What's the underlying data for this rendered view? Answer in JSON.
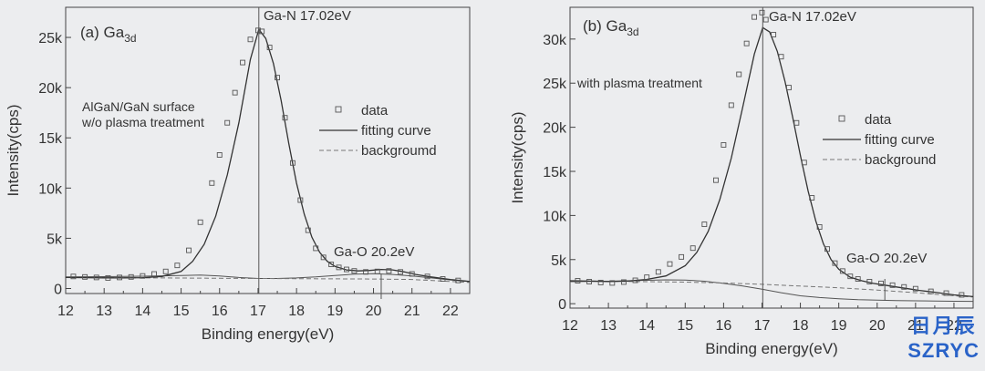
{
  "chart_data": [
    {
      "type": "line",
      "panel_label": "(a)",
      "species_main": "Ga",
      "species_sub": "3d",
      "xlabel": "Binding energy(eV)",
      "ylabel": "Intensity(cps)",
      "xlim": [
        12,
        22.5
      ],
      "ylim": [
        -500,
        28000
      ],
      "xticks": [
        12,
        13,
        14,
        15,
        16,
        17,
        18,
        19,
        20,
        21,
        22
      ],
      "yticks": [
        {
          "v": 0,
          "label": "0"
        },
        {
          "v": 5000,
          "label": "5k"
        },
        {
          "v": 10000,
          "label": "10k"
        },
        {
          "v": 15000,
          "label": "15k"
        },
        {
          "v": 20000,
          "label": "20k"
        },
        {
          "v": 25000,
          "label": "25k"
        }
      ],
      "annotation_lines": [
        "AlGaN/GaN surface",
        "w/o plasma treatment"
      ],
      "peak_main": {
        "label": "Ga-N 17.02eV",
        "x": 17.02
      },
      "peak_minor": {
        "label": "Ga-O 20.2eV",
        "x": 20.2
      },
      "legend": [
        "data",
        "fitting curve",
        "backgroumd"
      ],
      "model": {
        "amplitude": 24700,
        "sigma_left": 0.78,
        "sigma_right": 0.62,
        "minor_amp": 600,
        "minor_center": 20.2,
        "minor_sigma": 0.55
      },
      "series": [
        {
          "name": "data",
          "x": [
            12.2,
            12.5,
            12.8,
            13.1,
            13.4,
            13.7,
            14.0,
            14.3,
            14.6,
            14.9,
            15.2,
            15.5,
            15.8,
            16.0,
            16.2,
            16.4,
            16.6,
            16.8,
            17.0,
            17.1,
            17.3,
            17.5,
            17.7,
            17.9,
            18.1,
            18.3,
            18.5,
            18.7,
            18.9,
            19.1,
            19.3,
            19.5,
            19.8,
            20.1,
            20.4,
            20.7,
            21.0,
            21.4,
            21.8,
            22.2
          ],
          "y": [
            1200,
            1150,
            1100,
            1050,
            1100,
            1150,
            1250,
            1450,
            1700,
            2300,
            3800,
            6600,
            10500,
            13300,
            16500,
            19500,
            22500,
            24800,
            25700,
            25600,
            24000,
            21000,
            17000,
            12500,
            8800,
            5800,
            4000,
            3100,
            2400,
            2100,
            1900,
            1750,
            1650,
            1700,
            1750,
            1650,
            1450,
            1200,
            950,
            800
          ]
        },
        {
          "name": "fitting curve",
          "x": [
            12.0,
            12.5,
            13.0,
            13.5,
            14.0,
            14.5,
            15.0,
            15.3,
            15.6,
            15.9,
            16.2,
            16.5,
            16.8,
            17.02,
            17.2,
            17.4,
            17.6,
            17.8,
            18.0,
            18.2,
            18.4,
            18.6,
            18.8,
            19.0,
            19.3,
            19.6,
            19.9,
            20.2,
            20.5,
            20.8,
            21.1,
            21.5,
            22.0,
            22.5
          ],
          "y": [
            1100,
            1080,
            1060,
            1060,
            1080,
            1200,
            1700,
            2700,
            4400,
            7200,
            11300,
            16500,
            22800,
            25800,
            24900,
            22400,
            18700,
            14400,
            10500,
            7400,
            5100,
            3600,
            2700,
            2200,
            1850,
            1750,
            1800,
            1900,
            1850,
            1650,
            1400,
            1150,
            900,
            700
          ]
        },
        {
          "name": "backgroumd",
          "x": [
            12.0,
            13.0,
            14.0,
            15.0,
            16.0,
            17.0,
            18.0,
            19.0,
            20.0,
            21.0,
            22.0,
            22.5
          ],
          "y": [
            1100,
            1080,
            1060,
            1040,
            1020,
            1000,
            980,
            960,
            940,
            900,
            700,
            600
          ]
        },
        {
          "name": "envelope",
          "x": [
            12.0,
            13.0,
            14.0,
            15.0,
            15.5,
            16.0,
            16.5,
            17.0,
            17.5,
            18.0,
            18.5,
            19.0,
            19.5,
            20.0,
            20.5,
            21.0,
            21.5,
            22.0,
            22.5
          ],
          "y": [
            1150,
            1180,
            1220,
            1300,
            1330,
            1250,
            1100,
            1000,
            1000,
            1050,
            1150,
            1300,
            1420,
            1470,
            1400,
            1250,
            1050,
            850,
            700
          ]
        }
      ]
    },
    {
      "type": "line",
      "panel_label": "(b)",
      "species_main": "Ga",
      "species_sub": "3d",
      "xlabel": "Binding energy(eV)",
      "ylabel": "Intensity(cps)",
      "xlim": [
        12,
        22.5
      ],
      "ylim": [
        -500,
        33600
      ],
      "xticks": [
        12,
        13,
        14,
        15,
        16,
        17,
        18,
        19,
        20,
        21,
        22
      ],
      "yticks": [
        {
          "v": 0,
          "label": "0"
        },
        {
          "v": 5000,
          "label": "5k"
        },
        {
          "v": 10000,
          "label": "10k"
        },
        {
          "v": 15000,
          "label": "15k"
        },
        {
          "v": 20000,
          "label": "20k"
        },
        {
          "v": 25000,
          "label": "25k"
        },
        {
          "v": 30000,
          "label": "30k"
        }
      ],
      "annotation_lines": [
        "with plasma treatment"
      ],
      "peak_main": {
        "label": "Ga-N 17.02eV",
        "x": 17.02
      },
      "peak_minor": {
        "label": "Ga-O 20.2eV",
        "x": 20.2
      },
      "legend": [
        "data",
        "fitting curve",
        "background"
      ],
      "series": [
        {
          "name": "data",
          "x": [
            12.2,
            12.5,
            12.8,
            13.1,
            13.4,
            13.7,
            14.0,
            14.3,
            14.6,
            14.9,
            15.2,
            15.5,
            15.8,
            16.0,
            16.2,
            16.4,
            16.6,
            16.8,
            17.0,
            17.1,
            17.3,
            17.5,
            17.7,
            17.9,
            18.1,
            18.3,
            18.5,
            18.7,
            18.9,
            19.1,
            19.3,
            19.5,
            19.8,
            20.1,
            20.4,
            20.7,
            21.0,
            21.4,
            21.8,
            22.2
          ],
          "y": [
            2600,
            2500,
            2400,
            2350,
            2450,
            2650,
            3000,
            3600,
            4500,
            5300,
            6300,
            9000,
            14000,
            18000,
            22500,
            26000,
            29500,
            32500,
            33000,
            32200,
            30500,
            28000,
            24500,
            20500,
            16000,
            12000,
            8700,
            6200,
            4600,
            3700,
            3100,
            2800,
            2500,
            2300,
            2100,
            1900,
            1700,
            1400,
            1200,
            1000
          ]
        },
        {
          "name": "fitting curve",
          "x": [
            12.0,
            12.5,
            13.0,
            13.5,
            14.0,
            14.5,
            15.0,
            15.3,
            15.6,
            15.9,
            16.2,
            16.5,
            16.8,
            17.02,
            17.2,
            17.4,
            17.6,
            17.8,
            18.0,
            18.2,
            18.4,
            18.6,
            18.8,
            19.0,
            19.3,
            19.6,
            19.9,
            20.2,
            20.5,
            20.8,
            21.1,
            21.5,
            22.0,
            22.5
          ],
          "y": [
            2600,
            2560,
            2520,
            2560,
            2750,
            3150,
            4300,
            5800,
            8200,
            11800,
            16500,
            22300,
            28300,
            31300,
            30800,
            28600,
            25200,
            21100,
            16800,
            12800,
            9400,
            6800,
            5000,
            3900,
            3000,
            2600,
            2300,
            2100,
            1900,
            1700,
            1500,
            1300,
            1000,
            800
          ]
        },
        {
          "name": "background",
          "x": [
            12.0,
            13.0,
            14.0,
            15.0,
            16.0,
            17.0,
            18.0,
            19.0,
            20.0,
            21.0,
            22.0,
            22.5
          ],
          "y": [
            2600,
            2550,
            2500,
            2450,
            2350,
            2200,
            2000,
            1800,
            1550,
            1250,
            900,
            750
          ]
        },
        {
          "name": "envelope",
          "x": [
            12.0,
            13.0,
            14.0,
            14.5,
            15.0,
            15.5,
            16.0,
            16.5,
            17.0,
            17.5,
            18.0,
            18.5,
            19.0,
            19.5,
            20.0,
            20.5,
            21.0,
            21.5,
            22.0,
            22.5
          ],
          "y": [
            2500,
            2550,
            2650,
            2700,
            2680,
            2550,
            2300,
            2000,
            1650,
            1250,
            900,
            700,
            550,
            450,
            400,
            350,
            330,
            300,
            280,
            260
          ]
        }
      ]
    }
  ],
  "watermark": {
    "cn": "日月辰",
    "en": "SZRYC"
  }
}
